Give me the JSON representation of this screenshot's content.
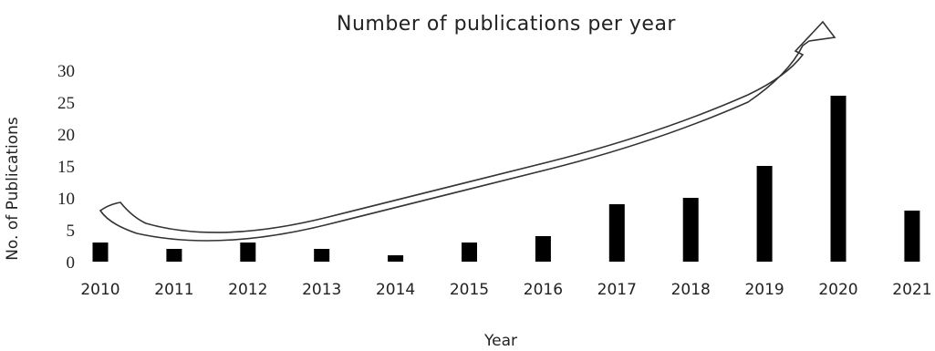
{
  "chart_data": {
    "type": "bar",
    "title": "Number of publications per year",
    "xlabel": "Year",
    "ylabel": "No. of Publications",
    "categories": [
      "2010",
      "2011",
      "2012",
      "2013",
      "2014",
      "2015",
      "2016",
      "2017",
      "2018",
      "2019",
      "2020",
      "2021"
    ],
    "values": [
      3,
      2,
      3,
      2,
      1,
      3,
      4,
      9,
      10,
      15,
      26,
      8
    ],
    "ylim": [
      0,
      30
    ],
    "yticks": [
      0,
      5,
      10,
      15,
      20,
      25,
      30
    ],
    "grid": false,
    "bar_color": "#000000",
    "annotation": "upward trend arrow (hollow curved arrow from 2010 to 2020)"
  }
}
